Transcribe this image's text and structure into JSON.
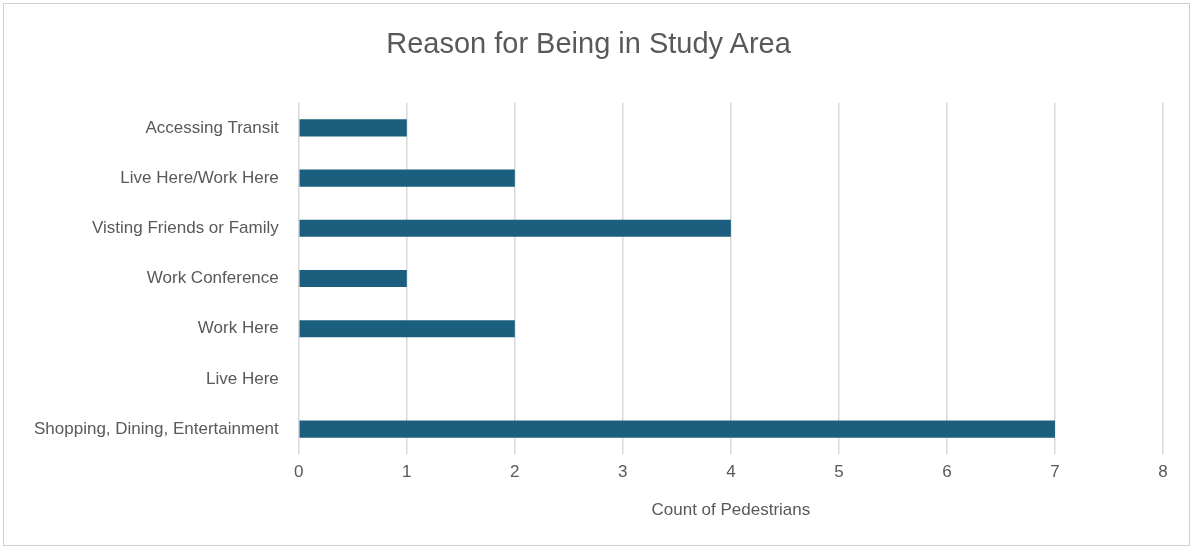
{
  "chart_data": {
    "type": "bar",
    "orientation": "horizontal",
    "title": "Reason for Being in Study Area",
    "xlabel": "Count of Pedestrians",
    "categories": [
      "Accessing Transit",
      "Live Here/Work Here",
      "Visting Friends or Family",
      "Work Conference",
      "Work Here",
      "Live Here",
      "Shopping, Dining, Entertainment"
    ],
    "values": [
      1,
      2,
      4,
      1,
      2,
      0,
      7
    ],
    "color": "#1b5e7e",
    "xlim": [
      0,
      8
    ],
    "xticks": [
      0,
      1,
      2,
      3,
      4,
      5,
      6,
      7,
      8
    ],
    "grid": "x",
    "legend": false
  }
}
